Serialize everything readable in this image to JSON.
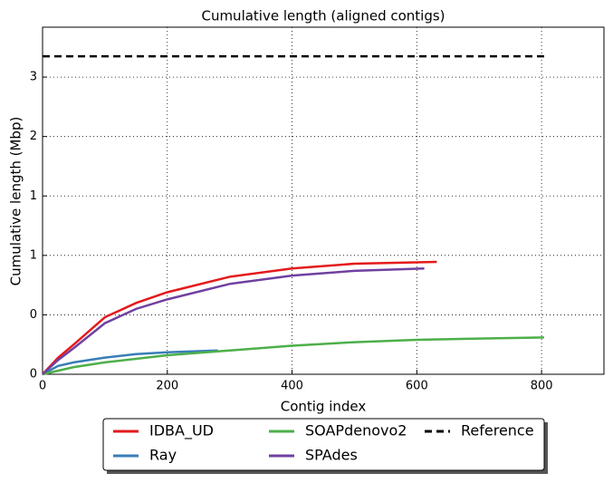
{
  "chart_data": {
    "type": "line",
    "title": "Cumulative length (aligned contigs)",
    "x_label": "Contig index",
    "y_label": "Cumulative length (Mbp)",
    "xlim": [
      0,
      900
    ],
    "xticks": [
      0,
      200,
      400,
      600,
      800
    ],
    "ylim": [
      0,
      2.92
    ],
    "yticks": [
      {
        "value": 0,
        "label": "0"
      },
      {
        "value": 0.5,
        "label": "0"
      },
      {
        "value": 1,
        "label": "1"
      },
      {
        "value": 1.5,
        "label": "1"
      },
      {
        "value": 2,
        "label": "2"
      },
      {
        "value": 2.5,
        "label": "3"
      }
    ],
    "grid": true,
    "series": [
      {
        "name": "IDBA_UD",
        "color": "#e41a1c",
        "x": [
          0,
          25,
          50,
          100,
          150,
          200,
          300,
          400,
          500,
          632
        ],
        "values": [
          0,
          0.14,
          0.25,
          0.48,
          0.6,
          0.69,
          0.82,
          0.89,
          0.93,
          0.945
        ]
      },
      {
        "name": "Ray",
        "color": "#377eb8",
        "x": [
          0,
          25,
          50,
          100,
          150,
          200,
          281
        ],
        "values": [
          0,
          0.07,
          0.1,
          0.14,
          0.17,
          0.185,
          0.2
        ]
      },
      {
        "name": "SOAPdenovo2",
        "color": "#4daf4a",
        "x": [
          0,
          50,
          100,
          200,
          300,
          400,
          500,
          600,
          700,
          804
        ],
        "values": [
          0,
          0.06,
          0.1,
          0.16,
          0.2,
          0.24,
          0.27,
          0.29,
          0.3,
          0.31
        ]
      },
      {
        "name": "SPAdes",
        "color": "#7040a0",
        "x": [
          0,
          25,
          50,
          100,
          150,
          200,
          300,
          400,
          500,
          612
        ],
        "values": [
          0,
          0.12,
          0.22,
          0.43,
          0.55,
          0.63,
          0.76,
          0.83,
          0.87,
          0.89
        ]
      },
      {
        "name": "Reference",
        "color": "#000000",
        "dashed": true,
        "x": [
          0,
          804
        ],
        "values": [
          2.675,
          2.675
        ]
      }
    ]
  }
}
